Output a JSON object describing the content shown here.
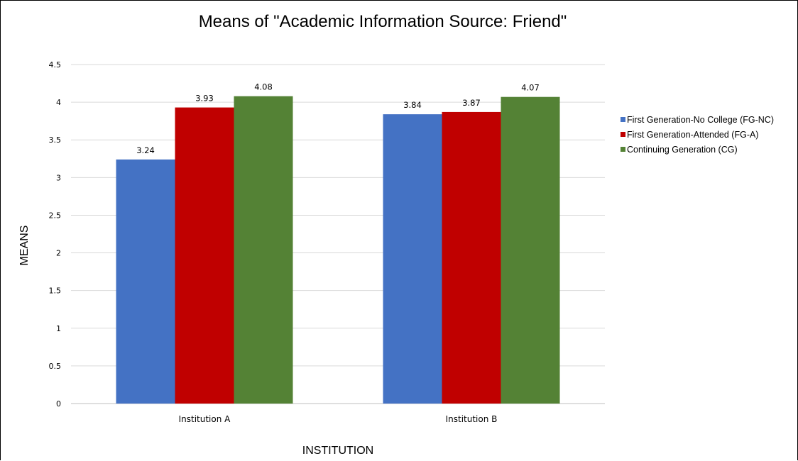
{
  "chart_data": {
    "type": "bar",
    "title": "Means of \"Academic Information Source: Friend\"",
    "xlabel": "INSTITUTION",
    "ylabel": "MEANS",
    "ylim": [
      0,
      4.5
    ],
    "yticks": [
      "0",
      "0.5",
      "1",
      "1.5",
      "2",
      "2.5",
      "3",
      "3.5",
      "4",
      "4.5"
    ],
    "grid": true,
    "legend_position": "right",
    "categories": [
      "Institution A",
      "Institution B"
    ],
    "series": [
      {
        "name": "First Generation-No College (FG-NC)",
        "color": "#4472c4",
        "values": [
          3.24,
          3.84
        ],
        "labels": [
          "3.24",
          "3.84"
        ]
      },
      {
        "name": "First Generation-Attended (FG-A)",
        "color": "#c00000",
        "values": [
          3.93,
          3.87
        ],
        "labels": [
          "3.93",
          "3.87"
        ]
      },
      {
        "name": "Continuing Generation (CG)",
        "color": "#548235",
        "values": [
          4.08,
          4.07
        ],
        "labels": [
          "4.08",
          "4.07"
        ]
      }
    ]
  }
}
